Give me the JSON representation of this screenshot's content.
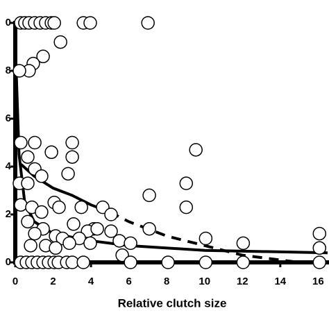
{
  "chart_data": {
    "type": "scatter",
    "x_label": "Relative clutch size",
    "xlim": [
      0,
      16.5
    ],
    "ylim": [
      0,
      1
    ],
    "xticks": [
      0,
      2,
      4,
      6,
      8,
      10,
      12,
      14,
      16
    ],
    "yticks": [
      0,
      {
        "value": 0.2,
        "label": "2"
      },
      {
        "value": 0.4,
        "label": "4"
      },
      {
        "value": 0.6,
        "label": "6"
      },
      {
        "value": 0.8,
        "label": "8"
      },
      {
        "value": 1.0,
        "label": "0"
      }
    ],
    "marker_color": "#ffffff",
    "x": [
      0.29,
      0.51,
      0.73,
      1.03,
      1.32,
      1.61,
      1.91,
      2.06,
      3.6,
      3.96,
      7.01,
      2.39,
      1.47,
      0.95,
      0.73,
      0.22,
      0.29,
      1.03,
      3.01,
      3.01,
      9.54,
      1.91,
      0.66,
      1.03,
      1.39,
      2.79,
      0.22,
      0.66,
      7.08,
      9.03,
      9.03,
      3.49,
      4.62,
      5.06,
      2.06,
      2.31,
      0.29,
      0.88,
      1.39,
      0.66,
      3.08,
      1.47,
      4.15,
      3.82,
      5.06,
      7.08,
      4.33,
      1.03,
      2.13,
      2.5,
      3.38,
      5.5,
      6.09,
      10.06,
      12.04,
      16.07,
      16.07,
      0.81,
      1.61,
      2.86,
      3.96,
      5.65,
      2.13,
      0.29,
      0.59,
      0.88,
      1.17,
      1.47,
      1.76,
      2.06,
      2.28,
      2.72,
      3.01,
      3.6,
      6.09,
      8.07,
      10.06,
      12.04,
      16.07
    ],
    "values": [
      1,
      1,
      1,
      1,
      1,
      1,
      1,
      1,
      1,
      1,
      1,
      0.92,
      0.86,
      0.83,
      0.8,
      0.8,
      0.5,
      0.5,
      0.5,
      0.44,
      0.47,
      0.46,
      0.44,
      0.39,
      0.36,
      0.37,
      0.33,
      0.33,
      0.28,
      0.33,
      0.23,
      0.23,
      0.23,
      0.2,
      0.25,
      0.23,
      0.24,
      0.23,
      0.21,
      0.17,
      0.16,
      0.14,
      0.14,
      0.13,
      0.13,
      0.14,
      0.14,
      0.12,
      0.11,
      0.1,
      0.1,
      0.09,
      0.08,
      0.1,
      0.08,
      0.12,
      0.06,
      0.07,
      0.07,
      0.08,
      0.08,
      0.03,
      0.06,
      0,
      0,
      0,
      0,
      0,
      0,
      0,
      0,
      0,
      0,
      0,
      0,
      0,
      0,
      0,
      0
    ],
    "lines": [
      {
        "style": "solid",
        "color": "#000000",
        "x": [
          0.3,
          1,
          2,
          3,
          4,
          5
        ],
        "values": [
          0.41,
          0.36,
          0.31,
          0.28,
          0.24,
          0.21
        ]
      },
      {
        "style": "dashed",
        "color": "#000000",
        "x": [
          5,
          6,
          8,
          10,
          12,
          14,
          15
        ],
        "values": [
          0.21,
          0.17,
          0.11,
          0.07,
          0.03,
          0.01,
          0
        ]
      },
      {
        "style": "solid",
        "color": "#000000",
        "x": [
          0.05,
          0.2,
          0.5,
          1,
          2,
          4,
          6,
          10,
          16.5
        ],
        "values": [
          0.8,
          0.45,
          0.25,
          0.17,
          0.12,
          0.09,
          0.07,
          0.05,
          0.04
        ]
      }
    ]
  }
}
